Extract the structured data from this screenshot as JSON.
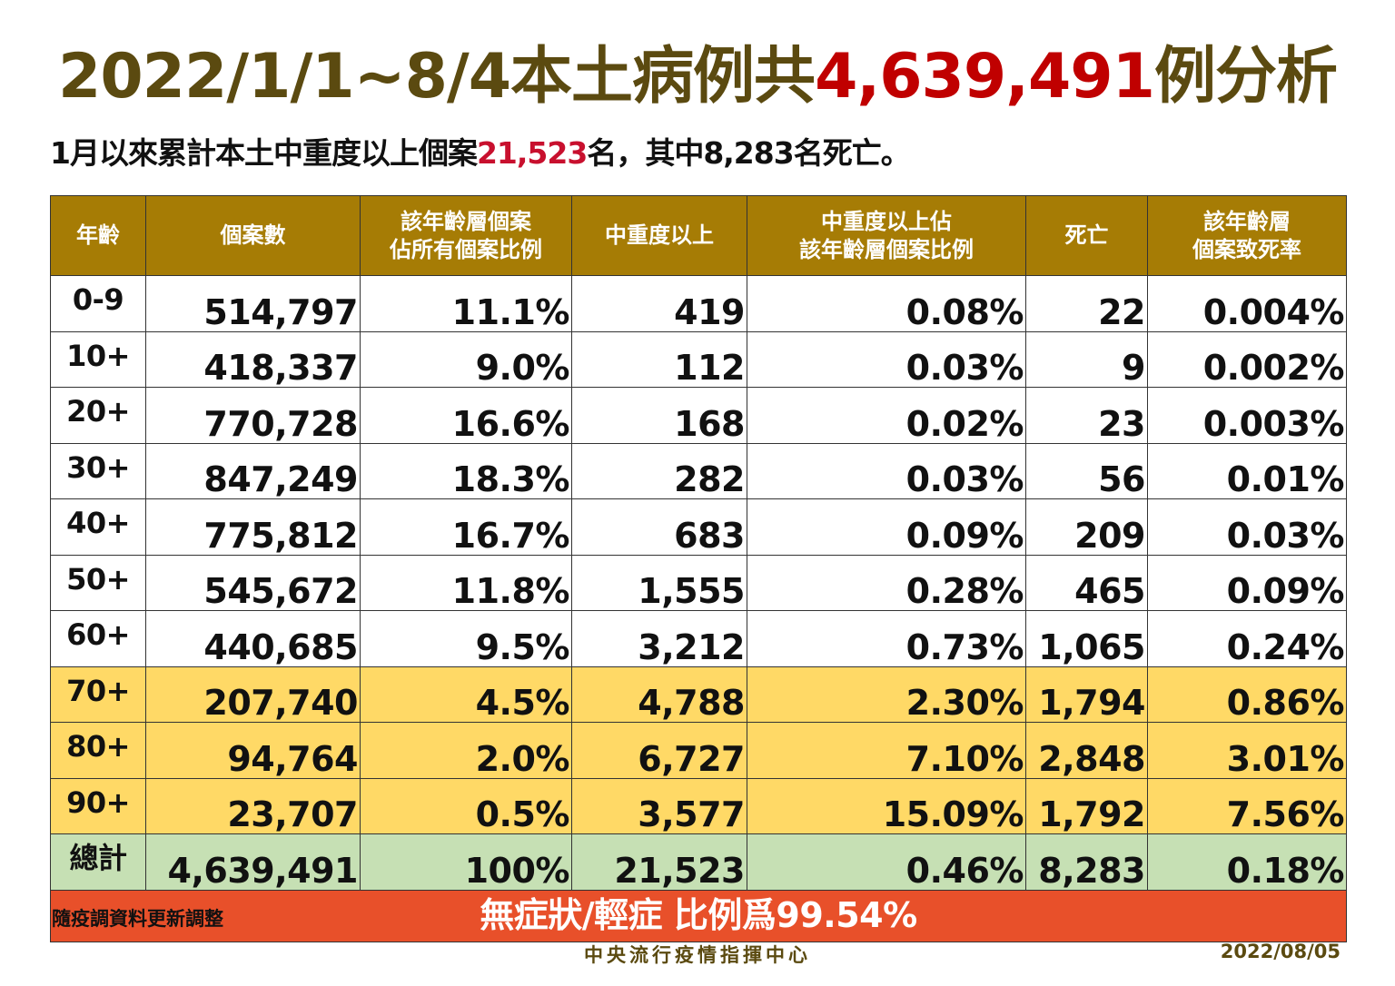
{
  "title": {
    "prefix": "2022/1/1~8/4本土病例共",
    "highlight": "4,639,491",
    "suffix": "例分析"
  },
  "subtitle": {
    "prefix": "1月以來累計本土中重度以上個案",
    "highlight": "21,523",
    "suffix": "名，其中8,283名死亡。"
  },
  "colors": {
    "header": "#a67c05",
    "title": "#5b4a10",
    "highlight": "#c00000",
    "elderly_rows": "#ffd966",
    "total_row": "#c6e0b4",
    "banner": "#e8502a"
  },
  "table": {
    "headers": [
      "年齡",
      "個案數",
      "該年齡層個案\n佔所有個案比例",
      "中重度以上",
      "中重度以上佔\n該年齡層個案比例",
      "死亡",
      "該年齡層\n個案致死率"
    ],
    "rows": [
      {
        "cells": [
          "0-9",
          "514,797",
          "11.1%",
          "419",
          "0.08%",
          "22",
          "0.004%"
        ],
        "style": ""
      },
      {
        "cells": [
          "10+",
          "418,337",
          "9.0%",
          "112",
          "0.03%",
          "9",
          "0.002%"
        ],
        "style": ""
      },
      {
        "cells": [
          "20+",
          "770,728",
          "16.6%",
          "168",
          "0.02%",
          "23",
          "0.003%"
        ],
        "style": ""
      },
      {
        "cells": [
          "30+",
          "847,249",
          "18.3%",
          "282",
          "0.03%",
          "56",
          "0.01%"
        ],
        "style": ""
      },
      {
        "cells": [
          "40+",
          "775,812",
          "16.7%",
          "683",
          "0.09%",
          "209",
          "0.03%"
        ],
        "style": ""
      },
      {
        "cells": [
          "50+",
          "545,672",
          "11.8%",
          "1,555",
          "0.28%",
          "465",
          "0.09%"
        ],
        "style": ""
      },
      {
        "cells": [
          "60+",
          "440,685",
          "9.5%",
          "3,212",
          "0.73%",
          "1,065",
          "0.24%"
        ],
        "style": ""
      },
      {
        "cells": [
          "70+",
          "207,740",
          "4.5%",
          "4,788",
          "2.30%",
          "1,794",
          "0.86%"
        ],
        "style": "yellow"
      },
      {
        "cells": [
          "80+",
          "94,764",
          "2.0%",
          "6,727",
          "7.10%",
          "2,848",
          "3.01%"
        ],
        "style": "yellow"
      },
      {
        "cells": [
          "90+",
          "23,707",
          "0.5%",
          "3,577",
          "15.09%",
          "1,792",
          "7.56%"
        ],
        "style": "yellow"
      },
      {
        "cells": [
          "總計",
          "4,639,491",
          "100%",
          "21,523",
          "0.46%",
          "8,283",
          "0.18%"
        ],
        "style": "green"
      }
    ],
    "banner": "無症狀/輕症 比例爲99.54%"
  },
  "note": "隨疫調資料更新調整",
  "org": "中央流行疫情指揮中心",
  "date": "2022/08/05"
}
